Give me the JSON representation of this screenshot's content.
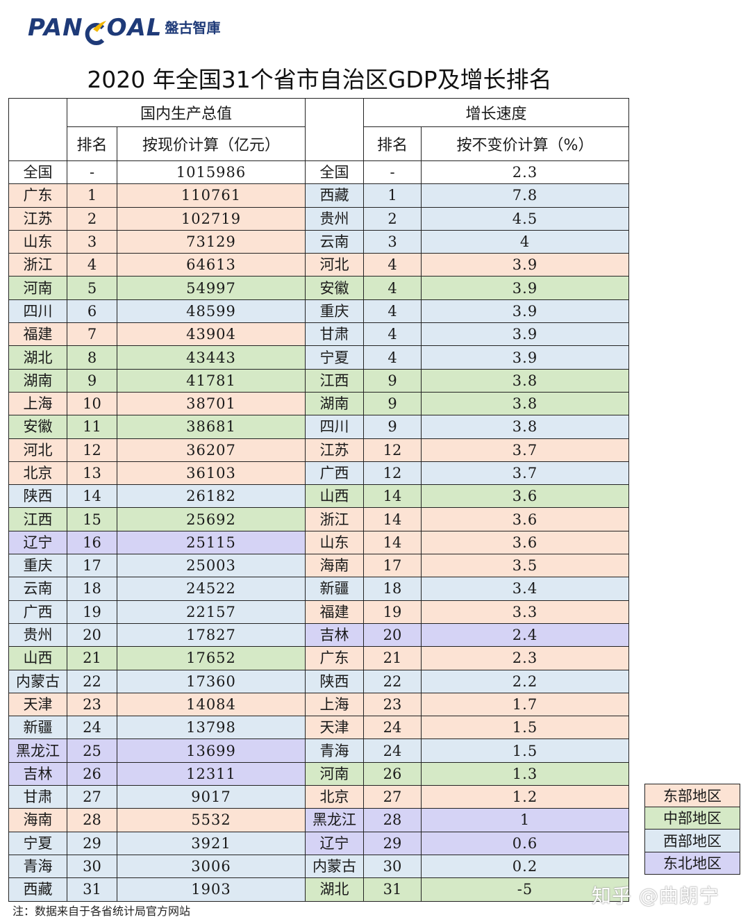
{
  "logo": {
    "word_left": "PAN",
    "word_right": "OAL",
    "cn": "盤古智庫"
  },
  "title": "2020 年全国31个省市自治区GDP及增长排名",
  "headers": {
    "gdp_group": "国内生产总值",
    "growth_group": "增长速度",
    "rank": "排名",
    "gdp_col": "按现价计算（亿元）",
    "growth_rank": "排名",
    "growth_col": "按不变价计算（%）"
  },
  "region_colors": {
    "east": "#fce3d4",
    "central": "#d5e9c6",
    "west": "#dde9f3",
    "northeast": "#d5d3f5"
  },
  "rows": [
    {
      "gdp_region": "全国",
      "gdp_rank": "-",
      "gdp_value": "1015986",
      "gdp_cat": "nat",
      "growth_region": "全国",
      "growth_rank": "-",
      "growth_value": "2.3",
      "growth_cat": "nat"
    },
    {
      "gdp_region": "广东",
      "gdp_rank": "1",
      "gdp_value": "110761",
      "gdp_cat": "e",
      "growth_region": "西藏",
      "growth_rank": "1",
      "growth_value": "7.8",
      "growth_cat": "w"
    },
    {
      "gdp_region": "江苏",
      "gdp_rank": "2",
      "gdp_value": "102719",
      "gdp_cat": "e",
      "growth_region": "贵州",
      "growth_rank": "2",
      "growth_value": "4.5",
      "growth_cat": "w"
    },
    {
      "gdp_region": "山东",
      "gdp_rank": "3",
      "gdp_value": "73129",
      "gdp_cat": "e",
      "growth_region": "云南",
      "growth_rank": "3",
      "growth_value": "4",
      "growth_cat": "w"
    },
    {
      "gdp_region": "浙江",
      "gdp_rank": "4",
      "gdp_value": "64613",
      "gdp_cat": "e",
      "growth_region": "河北",
      "growth_rank": "4",
      "growth_value": "3.9",
      "growth_cat": "e"
    },
    {
      "gdp_region": "河南",
      "gdp_rank": "5",
      "gdp_value": "54997",
      "gdp_cat": "c",
      "growth_region": "安徽",
      "growth_rank": "4",
      "growth_value": "3.9",
      "growth_cat": "c"
    },
    {
      "gdp_region": "四川",
      "gdp_rank": "6",
      "gdp_value": "48599",
      "gdp_cat": "w",
      "growth_region": "重庆",
      "growth_rank": "4",
      "growth_value": "3.9",
      "growth_cat": "w"
    },
    {
      "gdp_region": "福建",
      "gdp_rank": "7",
      "gdp_value": "43904",
      "gdp_cat": "e",
      "growth_region": "甘肃",
      "growth_rank": "4",
      "growth_value": "3.9",
      "growth_cat": "w"
    },
    {
      "gdp_region": "湖北",
      "gdp_rank": "8",
      "gdp_value": "43443",
      "gdp_cat": "c",
      "growth_region": "宁夏",
      "growth_rank": "4",
      "growth_value": "3.9",
      "growth_cat": "w"
    },
    {
      "gdp_region": "湖南",
      "gdp_rank": "9",
      "gdp_value": "41781",
      "gdp_cat": "c",
      "growth_region": "江西",
      "growth_rank": "9",
      "growth_value": "3.8",
      "growth_cat": "c"
    },
    {
      "gdp_region": "上海",
      "gdp_rank": "10",
      "gdp_value": "38701",
      "gdp_cat": "e",
      "growth_region": "湖南",
      "growth_rank": "9",
      "growth_value": "3.8",
      "growth_cat": "c"
    },
    {
      "gdp_region": "安徽",
      "gdp_rank": "11",
      "gdp_value": "38681",
      "gdp_cat": "c",
      "growth_region": "四川",
      "growth_rank": "9",
      "growth_value": "3.8",
      "growth_cat": "w"
    },
    {
      "gdp_region": "河北",
      "gdp_rank": "12",
      "gdp_value": "36207",
      "gdp_cat": "e",
      "growth_region": "江苏",
      "growth_rank": "12",
      "growth_value": "3.7",
      "growth_cat": "e"
    },
    {
      "gdp_region": "北京",
      "gdp_rank": "13",
      "gdp_value": "36103",
      "gdp_cat": "e",
      "growth_region": "广西",
      "growth_rank": "12",
      "growth_value": "3.7",
      "growth_cat": "w"
    },
    {
      "gdp_region": "陕西",
      "gdp_rank": "14",
      "gdp_value": "26182",
      "gdp_cat": "w",
      "growth_region": "山西",
      "growth_rank": "14",
      "growth_value": "3.6",
      "growth_cat": "c"
    },
    {
      "gdp_region": "江西",
      "gdp_rank": "15",
      "gdp_value": "25692",
      "gdp_cat": "c",
      "growth_region": "浙江",
      "growth_rank": "14",
      "growth_value": "3.6",
      "growth_cat": "e"
    },
    {
      "gdp_region": "辽宁",
      "gdp_rank": "16",
      "gdp_value": "25115",
      "gdp_cat": "n",
      "growth_region": "山东",
      "growth_rank": "14",
      "growth_value": "3.6",
      "growth_cat": "e"
    },
    {
      "gdp_region": "重庆",
      "gdp_rank": "17",
      "gdp_value": "25003",
      "gdp_cat": "w",
      "growth_region": "海南",
      "growth_rank": "17",
      "growth_value": "3.5",
      "growth_cat": "e"
    },
    {
      "gdp_region": "云南",
      "gdp_rank": "18",
      "gdp_value": "24522",
      "gdp_cat": "w",
      "growth_region": "新疆",
      "growth_rank": "18",
      "growth_value": "3.4",
      "growth_cat": "w"
    },
    {
      "gdp_region": "广西",
      "gdp_rank": "19",
      "gdp_value": "22157",
      "gdp_cat": "w",
      "growth_region": "福建",
      "growth_rank": "19",
      "growth_value": "3.3",
      "growth_cat": "e"
    },
    {
      "gdp_region": "贵州",
      "gdp_rank": "20",
      "gdp_value": "17827",
      "gdp_cat": "w",
      "growth_region": "吉林",
      "growth_rank": "20",
      "growth_value": "2.4",
      "growth_cat": "n"
    },
    {
      "gdp_region": "山西",
      "gdp_rank": "21",
      "gdp_value": "17652",
      "gdp_cat": "c",
      "growth_region": "广东",
      "growth_rank": "21",
      "growth_value": "2.3",
      "growth_cat": "e"
    },
    {
      "gdp_region": "内蒙古",
      "gdp_rank": "22",
      "gdp_value": "17360",
      "gdp_cat": "w",
      "growth_region": "陕西",
      "growth_rank": "22",
      "growth_value": "2.2",
      "growth_cat": "w"
    },
    {
      "gdp_region": "天津",
      "gdp_rank": "23",
      "gdp_value": "14084",
      "gdp_cat": "e",
      "growth_region": "上海",
      "growth_rank": "23",
      "growth_value": "1.7",
      "growth_cat": "e"
    },
    {
      "gdp_region": "新疆",
      "gdp_rank": "24",
      "gdp_value": "13798",
      "gdp_cat": "w",
      "growth_region": "天津",
      "growth_rank": "24",
      "growth_value": "1.5",
      "growth_cat": "e"
    },
    {
      "gdp_region": "黑龙江",
      "gdp_rank": "25",
      "gdp_value": "13699",
      "gdp_cat": "n",
      "growth_region": "青海",
      "growth_rank": "24",
      "growth_value": "1.5",
      "growth_cat": "w"
    },
    {
      "gdp_region": "吉林",
      "gdp_rank": "26",
      "gdp_value": "12311",
      "gdp_cat": "n",
      "growth_region": "河南",
      "growth_rank": "26",
      "growth_value": "1.3",
      "growth_cat": "c"
    },
    {
      "gdp_region": "甘肃",
      "gdp_rank": "27",
      "gdp_value": "9017",
      "gdp_cat": "w",
      "growth_region": "北京",
      "growth_rank": "27",
      "growth_value": "1.2",
      "growth_cat": "e"
    },
    {
      "gdp_region": "海南",
      "gdp_rank": "28",
      "gdp_value": "5532",
      "gdp_cat": "e",
      "growth_region": "黑龙江",
      "growth_rank": "28",
      "growth_value": "1",
      "growth_cat": "n"
    },
    {
      "gdp_region": "宁夏",
      "gdp_rank": "29",
      "gdp_value": "3921",
      "gdp_cat": "w",
      "growth_region": "辽宁",
      "growth_rank": "29",
      "growth_value": "0.6",
      "growth_cat": "n"
    },
    {
      "gdp_region": "青海",
      "gdp_rank": "30",
      "gdp_value": "3006",
      "gdp_cat": "w",
      "growth_region": "内蒙古",
      "growth_rank": "30",
      "growth_value": "0.2",
      "growth_cat": "w"
    },
    {
      "gdp_region": "西藏",
      "gdp_rank": "31",
      "gdp_value": "1903",
      "gdp_cat": "w",
      "growth_region": "湖北",
      "growth_rank": "31",
      "growth_value": "-5",
      "growth_cat": "c"
    }
  ],
  "legend": [
    {
      "label": "东部地区",
      "cat": "e"
    },
    {
      "label": "中部地区",
      "cat": "c"
    },
    {
      "label": "西部地区",
      "cat": "w"
    },
    {
      "label": "东北地区",
      "cat": "n"
    }
  ],
  "note": "注：数据来自于各省统计局官方网站",
  "watermark": "知乎 @曲朗宁"
}
